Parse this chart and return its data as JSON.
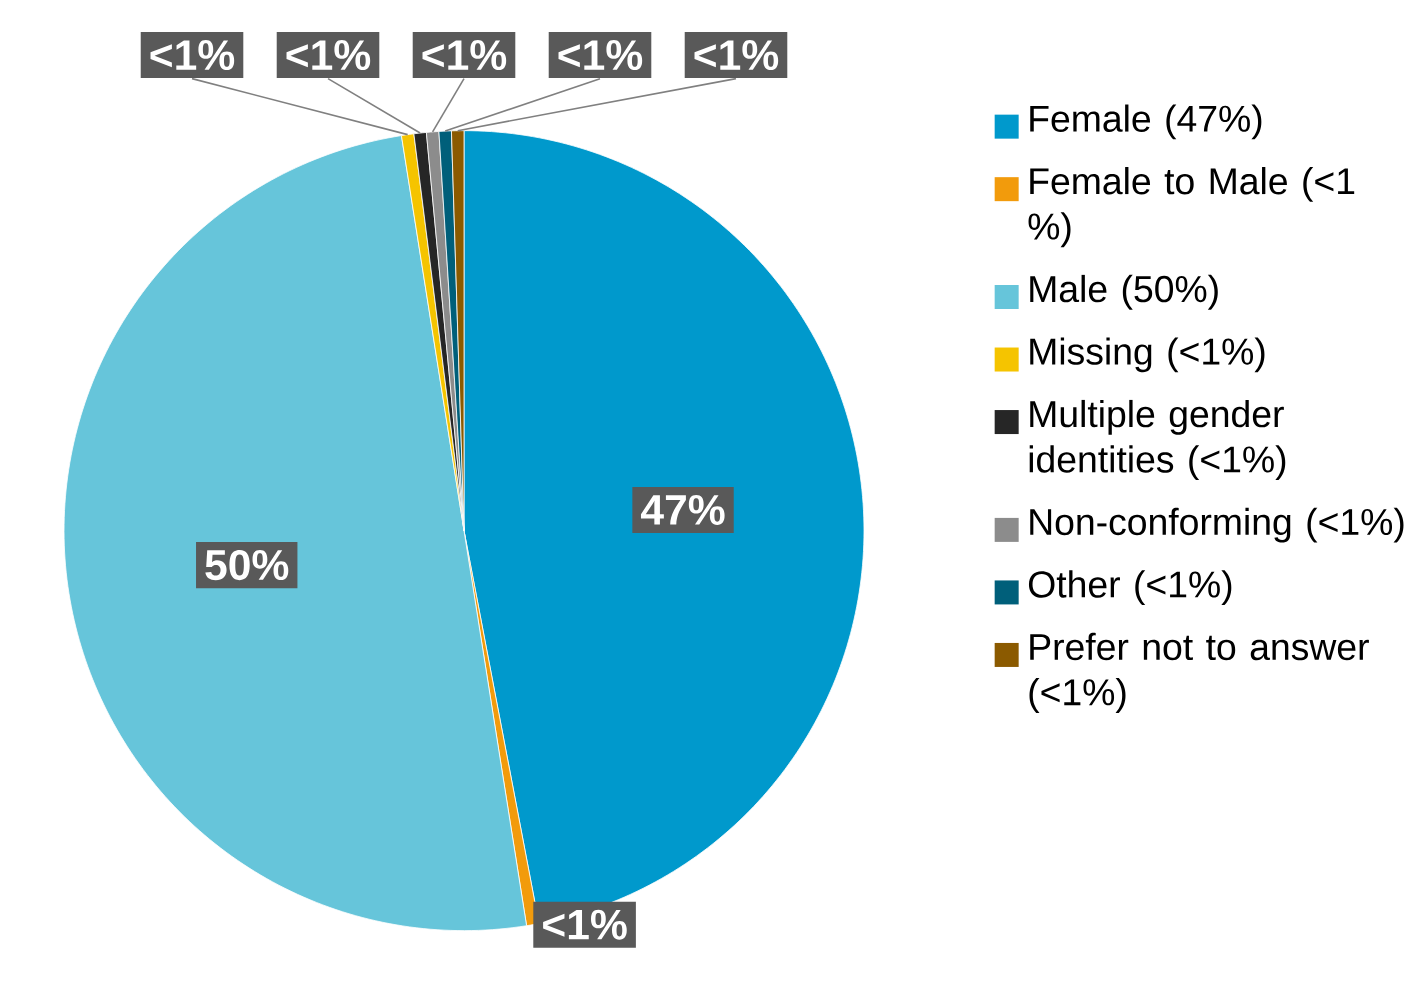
{
  "chart_data": {
    "type": "pie",
    "categories": [
      "Female (47%)",
      "Female to Male (<1 %)",
      "Male (50%)",
      "Missing (<1%)",
      "Multiple gender identities (<1%)",
      "Non-conforming (<1%)",
      "Other (<1%)",
      "Prefer not to answer (<1%)"
    ],
    "values": [
      47,
      0.5,
      50,
      0.5,
      0.5,
      0.5,
      0.5,
      0.5
    ],
    "colors": [
      "#0099cc",
      "#f29b0c",
      "#66c5da",
      "#f5c400",
      "#262626",
      "#8c8c8c",
      "#005f7a",
      "#8b5a00"
    ],
    "value_labels": [
      "47%",
      "<1%",
      "50%",
      "<1%",
      "<1%",
      "<1%",
      "<1%",
      "<1%"
    ],
    "legend": "right"
  }
}
